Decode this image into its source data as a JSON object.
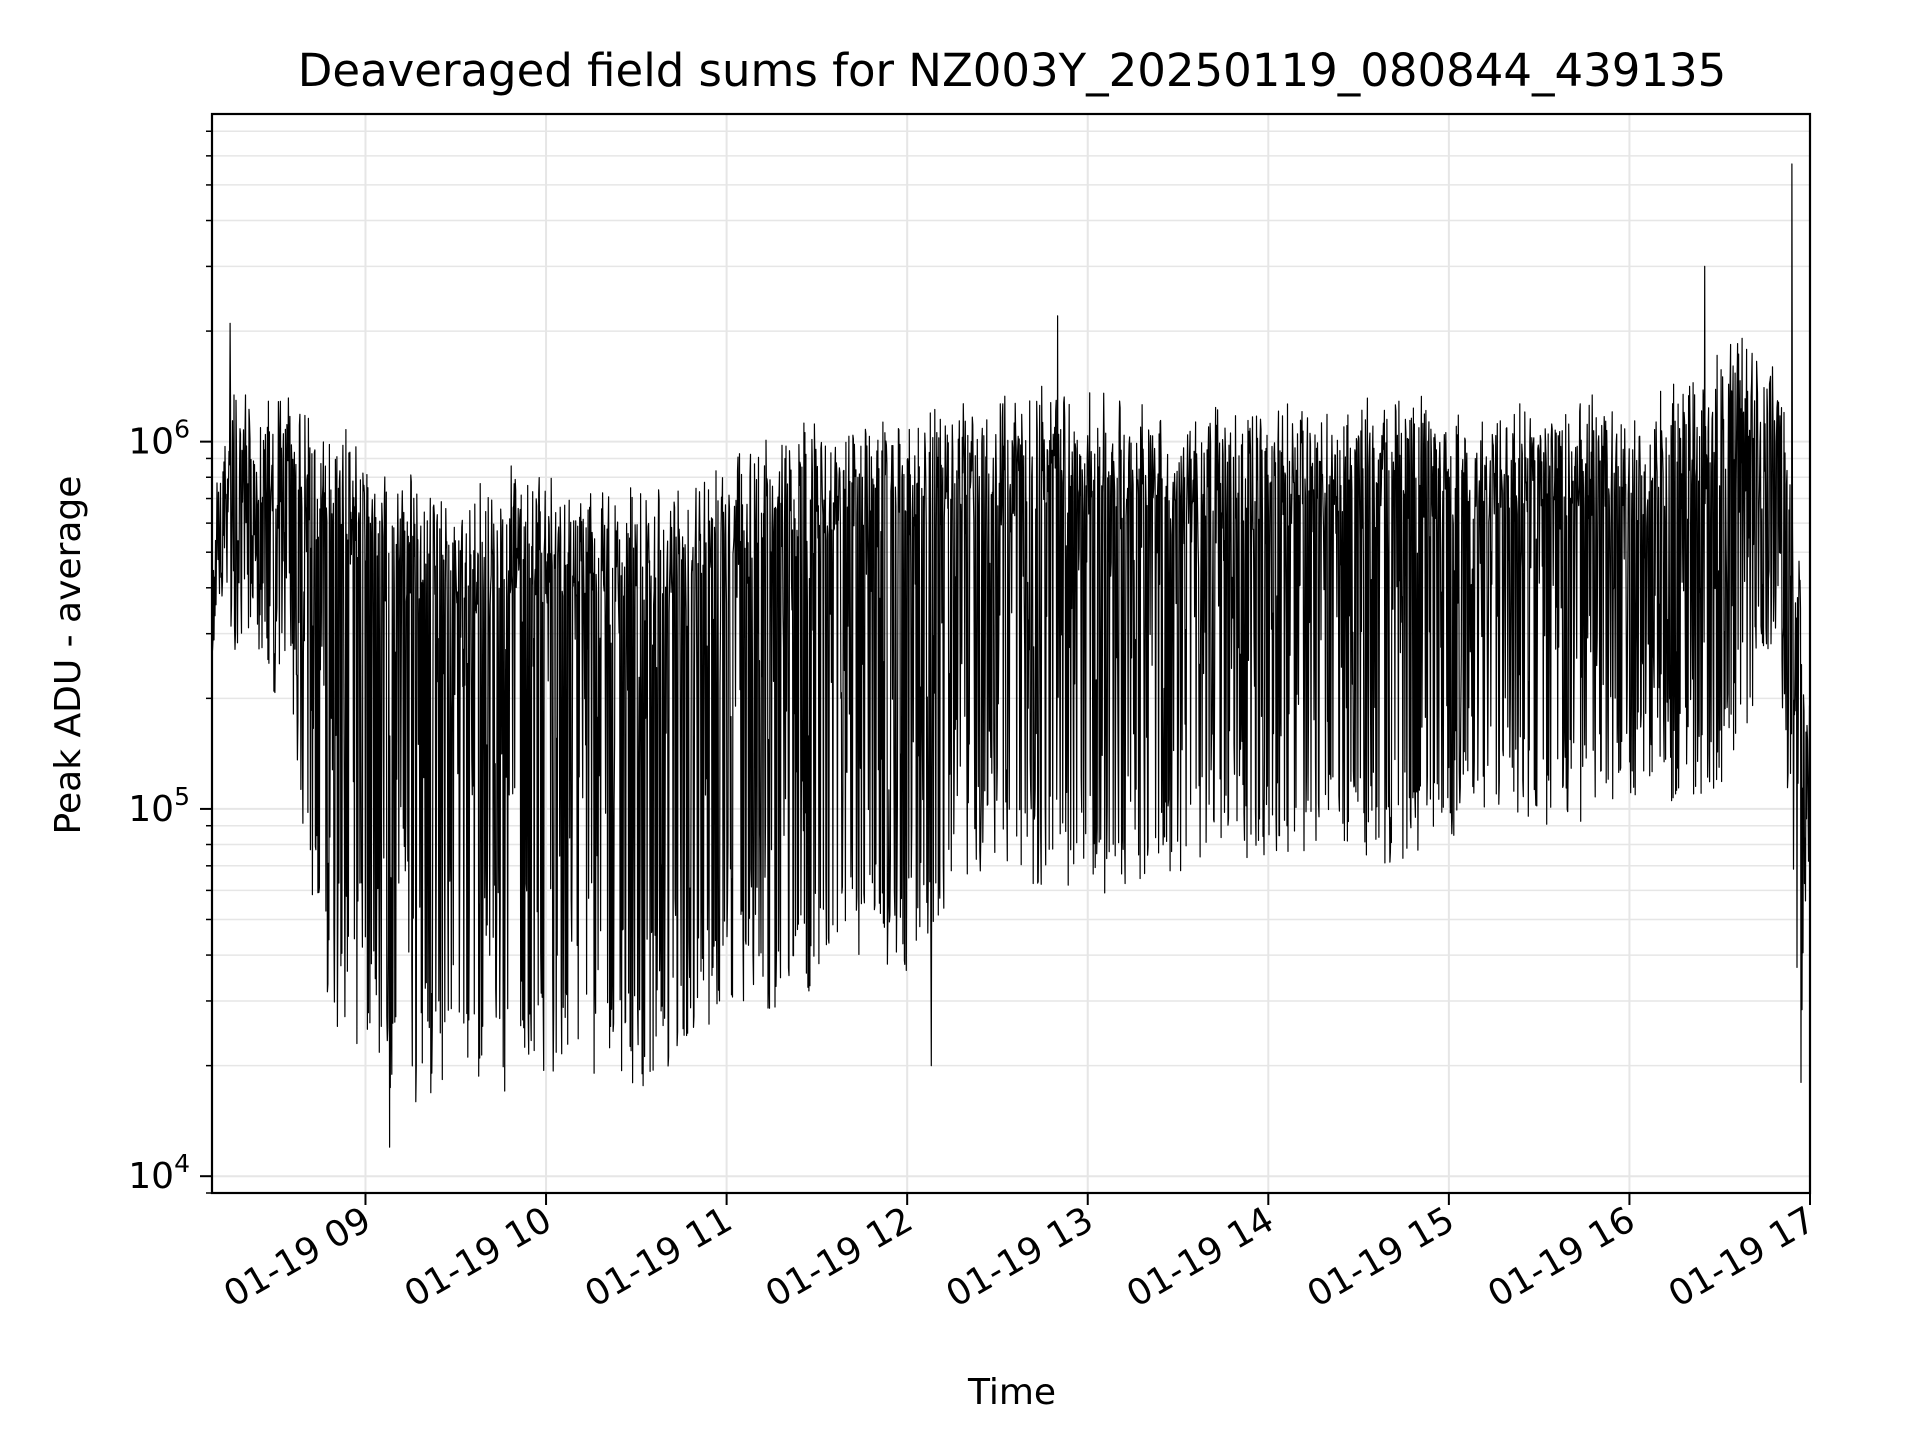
{
  "chart_data": {
    "type": "line",
    "title": "Deaveraged field sums for NZ003Y_20250119_080844_439135",
    "xlabel": "Time",
    "ylabel": "Peak ADU - average",
    "yscale": "log",
    "ylim": [
      9000,
      7800000
    ],
    "xlim": [
      "2025-01-19 08:09",
      "2025-01-19 17:00"
    ],
    "grid": true,
    "line_color": "#000000",
    "grid_color": "#e6e6e6",
    "x_ticks": [
      {
        "t": "2025-01-19 09:00",
        "label": "01-19 09"
      },
      {
        "t": "2025-01-19 10:00",
        "label": "01-19 10"
      },
      {
        "t": "2025-01-19 11:00",
        "label": "01-19 11"
      },
      {
        "t": "2025-01-19 12:00",
        "label": "01-19 12"
      },
      {
        "t": "2025-01-19 13:00",
        "label": "01-19 13"
      },
      {
        "t": "2025-01-19 14:00",
        "label": "01-19 14"
      },
      {
        "t": "2025-01-19 15:00",
        "label": "01-19 15"
      },
      {
        "t": "2025-01-19 16:00",
        "label": "01-19 16"
      },
      {
        "t": "2025-01-19 17:00",
        "label": "01-19 17"
      }
    ],
    "y_ticks": [
      {
        "value": 10000,
        "base": "10",
        "exp": "4"
      },
      {
        "value": 100000,
        "base": "10",
        "exp": "5"
      },
      {
        "value": 1000000,
        "base": "10",
        "exp": "6"
      }
    ],
    "envelope": [
      {
        "t": "2025-01-19 08:09",
        "high": 900000,
        "low": 500000
      },
      {
        "t": "2025-01-19 08:15",
        "high": 1800000,
        "low": 400000
      },
      {
        "t": "2025-01-19 08:25",
        "high": 1400000,
        "low": 300000
      },
      {
        "t": "2025-01-19 08:35",
        "high": 1500000,
        "low": 250000
      },
      {
        "t": "2025-01-19 08:40",
        "high": 1300000,
        "low": 60000
      },
      {
        "t": "2025-01-19 08:50",
        "high": 1300000,
        "low": 25000
      },
      {
        "t": "2025-01-19 09:00",
        "high": 1000000,
        "low": 22000
      },
      {
        "t": "2025-01-19 09:10",
        "high": 900000,
        "low": 15000
      },
      {
        "t": "2025-01-19 09:30",
        "high": 850000,
        "low": 17000
      },
      {
        "t": "2025-01-19 09:50",
        "high": 950000,
        "low": 17000
      },
      {
        "t": "2025-01-19 10:10",
        "high": 850000,
        "low": 20000
      },
      {
        "t": "2025-01-19 10:30",
        "high": 850000,
        "low": 17000
      },
      {
        "t": "2025-01-19 10:50",
        "high": 900000,
        "low": 22000
      },
      {
        "t": "2025-01-19 11:00",
        "high": 1100000,
        "low": 30000
      },
      {
        "t": "2025-01-19 11:20",
        "high": 1200000,
        "low": 28000
      },
      {
        "t": "2025-01-19 11:40",
        "high": 1400000,
        "low": 40000
      },
      {
        "t": "2025-01-19 12:00",
        "high": 1300000,
        "low": 35000
      },
      {
        "t": "2025-01-19 12:10",
        "high": 1500000,
        "low": 50000
      },
      {
        "t": "2025-01-19 12:30",
        "high": 1500000,
        "low": 75000
      },
      {
        "t": "2025-01-19 12:50",
        "high": 1600000,
        "low": 55000
      },
      {
        "t": "2025-01-19 13:10",
        "high": 1500000,
        "low": 60000
      },
      {
        "t": "2025-01-19 13:40",
        "high": 1400000,
        "low": 70000
      },
      {
        "t": "2025-01-19 14:10",
        "high": 1400000,
        "low": 75000
      },
      {
        "t": "2025-01-19 14:40",
        "high": 1500000,
        "low": 70000
      },
      {
        "t": "2025-01-19 15:10",
        "high": 1400000,
        "low": 90000
      },
      {
        "t": "2025-01-19 15:40",
        "high": 1500000,
        "low": 90000
      },
      {
        "t": "2025-01-19 16:10",
        "high": 1500000,
        "low": 100000
      },
      {
        "t": "2025-01-19 16:30",
        "high": 2000000,
        "low": 100000
      },
      {
        "t": "2025-01-19 16:50",
        "high": 2200000,
        "low": 300000
      },
      {
        "t": "2025-01-19 16:57",
        "high": 500000,
        "low": 20000
      },
      {
        "t": "2025-01-19 17:00",
        "high": 220000,
        "low": 170000
      }
    ],
    "spikes": [
      {
        "t": "2025-01-19 08:15",
        "value": 2100000
      },
      {
        "t": "2025-01-19 09:08",
        "value": 12000
      },
      {
        "t": "2025-01-19 12:50",
        "value": 2200000
      },
      {
        "t": "2025-01-19 16:25",
        "value": 3000000
      },
      {
        "t": "2025-01-19 16:54",
        "value": 5700000
      },
      {
        "t": "2025-01-19 12:08",
        "value": 20000
      },
      {
        "t": "2025-01-19 16:57",
        "value": 18000
      }
    ]
  }
}
